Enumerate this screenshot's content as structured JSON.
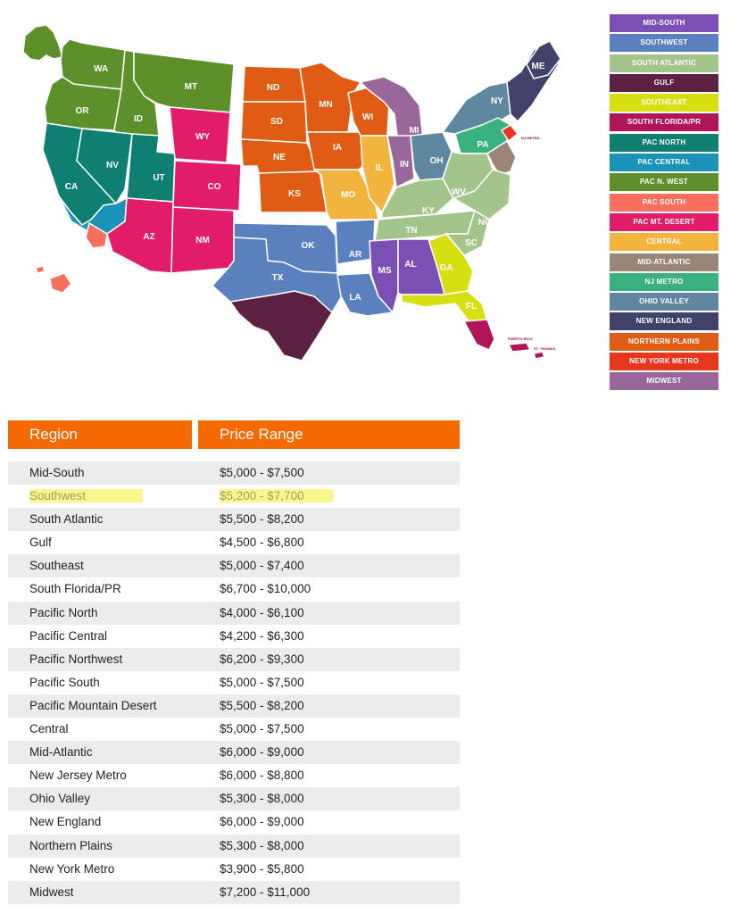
{
  "map": {
    "state_labels": {
      "wa": "WA",
      "or": "OR",
      "ca": "CA",
      "nv": "NV",
      "id": "ID",
      "mt": "MT",
      "ut": "UT",
      "wy": "WY",
      "co": "CO",
      "az": "AZ",
      "nm": "NM",
      "nd": "ND",
      "sd": "SD",
      "ne": "NE",
      "ks": "KS",
      "mn": "MN",
      "ia": "IA",
      "mo": "MO",
      "wi": "WI",
      "il": "IL",
      "mi": "MI",
      "in": "IN",
      "oh": "OH",
      "ky": "KY",
      "tn": "TN",
      "wv": "WV",
      "nc": "NC",
      "sc": "SC",
      "ga": "GA",
      "al": "AL",
      "ms": "MS",
      "la": "LA",
      "ar": "AR",
      "ok": "OK",
      "tx": "TX",
      "fl": "FL",
      "pa": "PA",
      "ny": "NY",
      "me": "ME"
    },
    "small_labels": {
      "nj_metro": "NJ METRO",
      "puerto_rico": "PUERTO RICO",
      "st_thomas": "ST. THOMAS"
    }
  },
  "legend": [
    {
      "label": "MID-SOUTH",
      "color": "#7b4fb3"
    },
    {
      "label": "SOUTHWEST",
      "color": "#5b80be"
    },
    {
      "label": "SOUTH ATLANTIC",
      "color": "#a3c58b"
    },
    {
      "label": "GULF",
      "color": "#5c2043"
    },
    {
      "label": "SOUTHEAST",
      "color": "#d6e010"
    },
    {
      "label": "SOUTH FLORIDA/PR",
      "color": "#b0155b"
    },
    {
      "label": "PAC NORTH",
      "color": "#0f7f72"
    },
    {
      "label": "PAC CENTRAL",
      "color": "#1b93b8"
    },
    {
      "label": "PAC N. WEST",
      "color": "#5d8f2a"
    },
    {
      "label": "PAC SOUTH",
      "color": "#f86f5d"
    },
    {
      "label": "PAC MT. DESERT",
      "color": "#e31c69"
    },
    {
      "label": "CENTRAL",
      "color": "#f3b43d"
    },
    {
      "label": "MID-ATLANTIC",
      "color": "#9a8576"
    },
    {
      "label": "NJ METRO",
      "color": "#3ab27f"
    },
    {
      "label": "OHIO VALLEY",
      "color": "#5f88a0"
    },
    {
      "label": "NEW ENGLAND",
      "color": "#414169"
    },
    {
      "label": "NORTHERN PLAINS",
      "color": "#e05c14"
    },
    {
      "label": "NEW YORK METRO",
      "color": "#e8361d"
    },
    {
      "label": "MIDWEST",
      "color": "#9a679a"
    }
  ],
  "table": {
    "headers": {
      "region": "Region",
      "price": "Price Range"
    },
    "rows": [
      {
        "region": "Mid-South",
        "price": "$5,000 - $7,500"
      },
      {
        "region": "Southwest",
        "price": "$5,200 - $7,700"
      },
      {
        "region": "South Atlantic",
        "price": "$5,500 - $8,200"
      },
      {
        "region": "Gulf",
        "price": "$4,500 - $6,800"
      },
      {
        "region": "Southeast",
        "price": "$5,000 - $7,400"
      },
      {
        "region": "South Florida/PR",
        "price": "$6,700 - $10,000"
      },
      {
        "region": "Pacific North",
        "price": "$4,000 - $6,100"
      },
      {
        "region": "Pacific Central",
        "price": "$4,200 - $6,300"
      },
      {
        "region": "Pacific Northwest",
        "price": "$6,200 - $9,300"
      },
      {
        "region": "Pacific South",
        "price": "$5,000 - $7,500"
      },
      {
        "region": "Pacific Mountain Desert",
        "price": "$5,500 - $8,200"
      },
      {
        "region": "Central",
        "price": "$5,000 - $7,500"
      },
      {
        "region": "Mid-Atlantic",
        "price": "$6,000 - $9,000"
      },
      {
        "region": "New Jersey Metro",
        "price": "$6,000 - $8,800"
      },
      {
        "region": "Ohio Valley",
        "price": "$5,300 - $8,000"
      },
      {
        "region": "New England",
        "price": "$6,000 - $9,000"
      },
      {
        "region": "Northern Plains",
        "price": "$5,300 - $8,000"
      },
      {
        "region": "New York Metro",
        "price": "$3,900 - $5,800"
      },
      {
        "region": "Midwest",
        "price": "$7,200 - $11,000"
      }
    ],
    "highlight_color": "#f9f78a"
  }
}
